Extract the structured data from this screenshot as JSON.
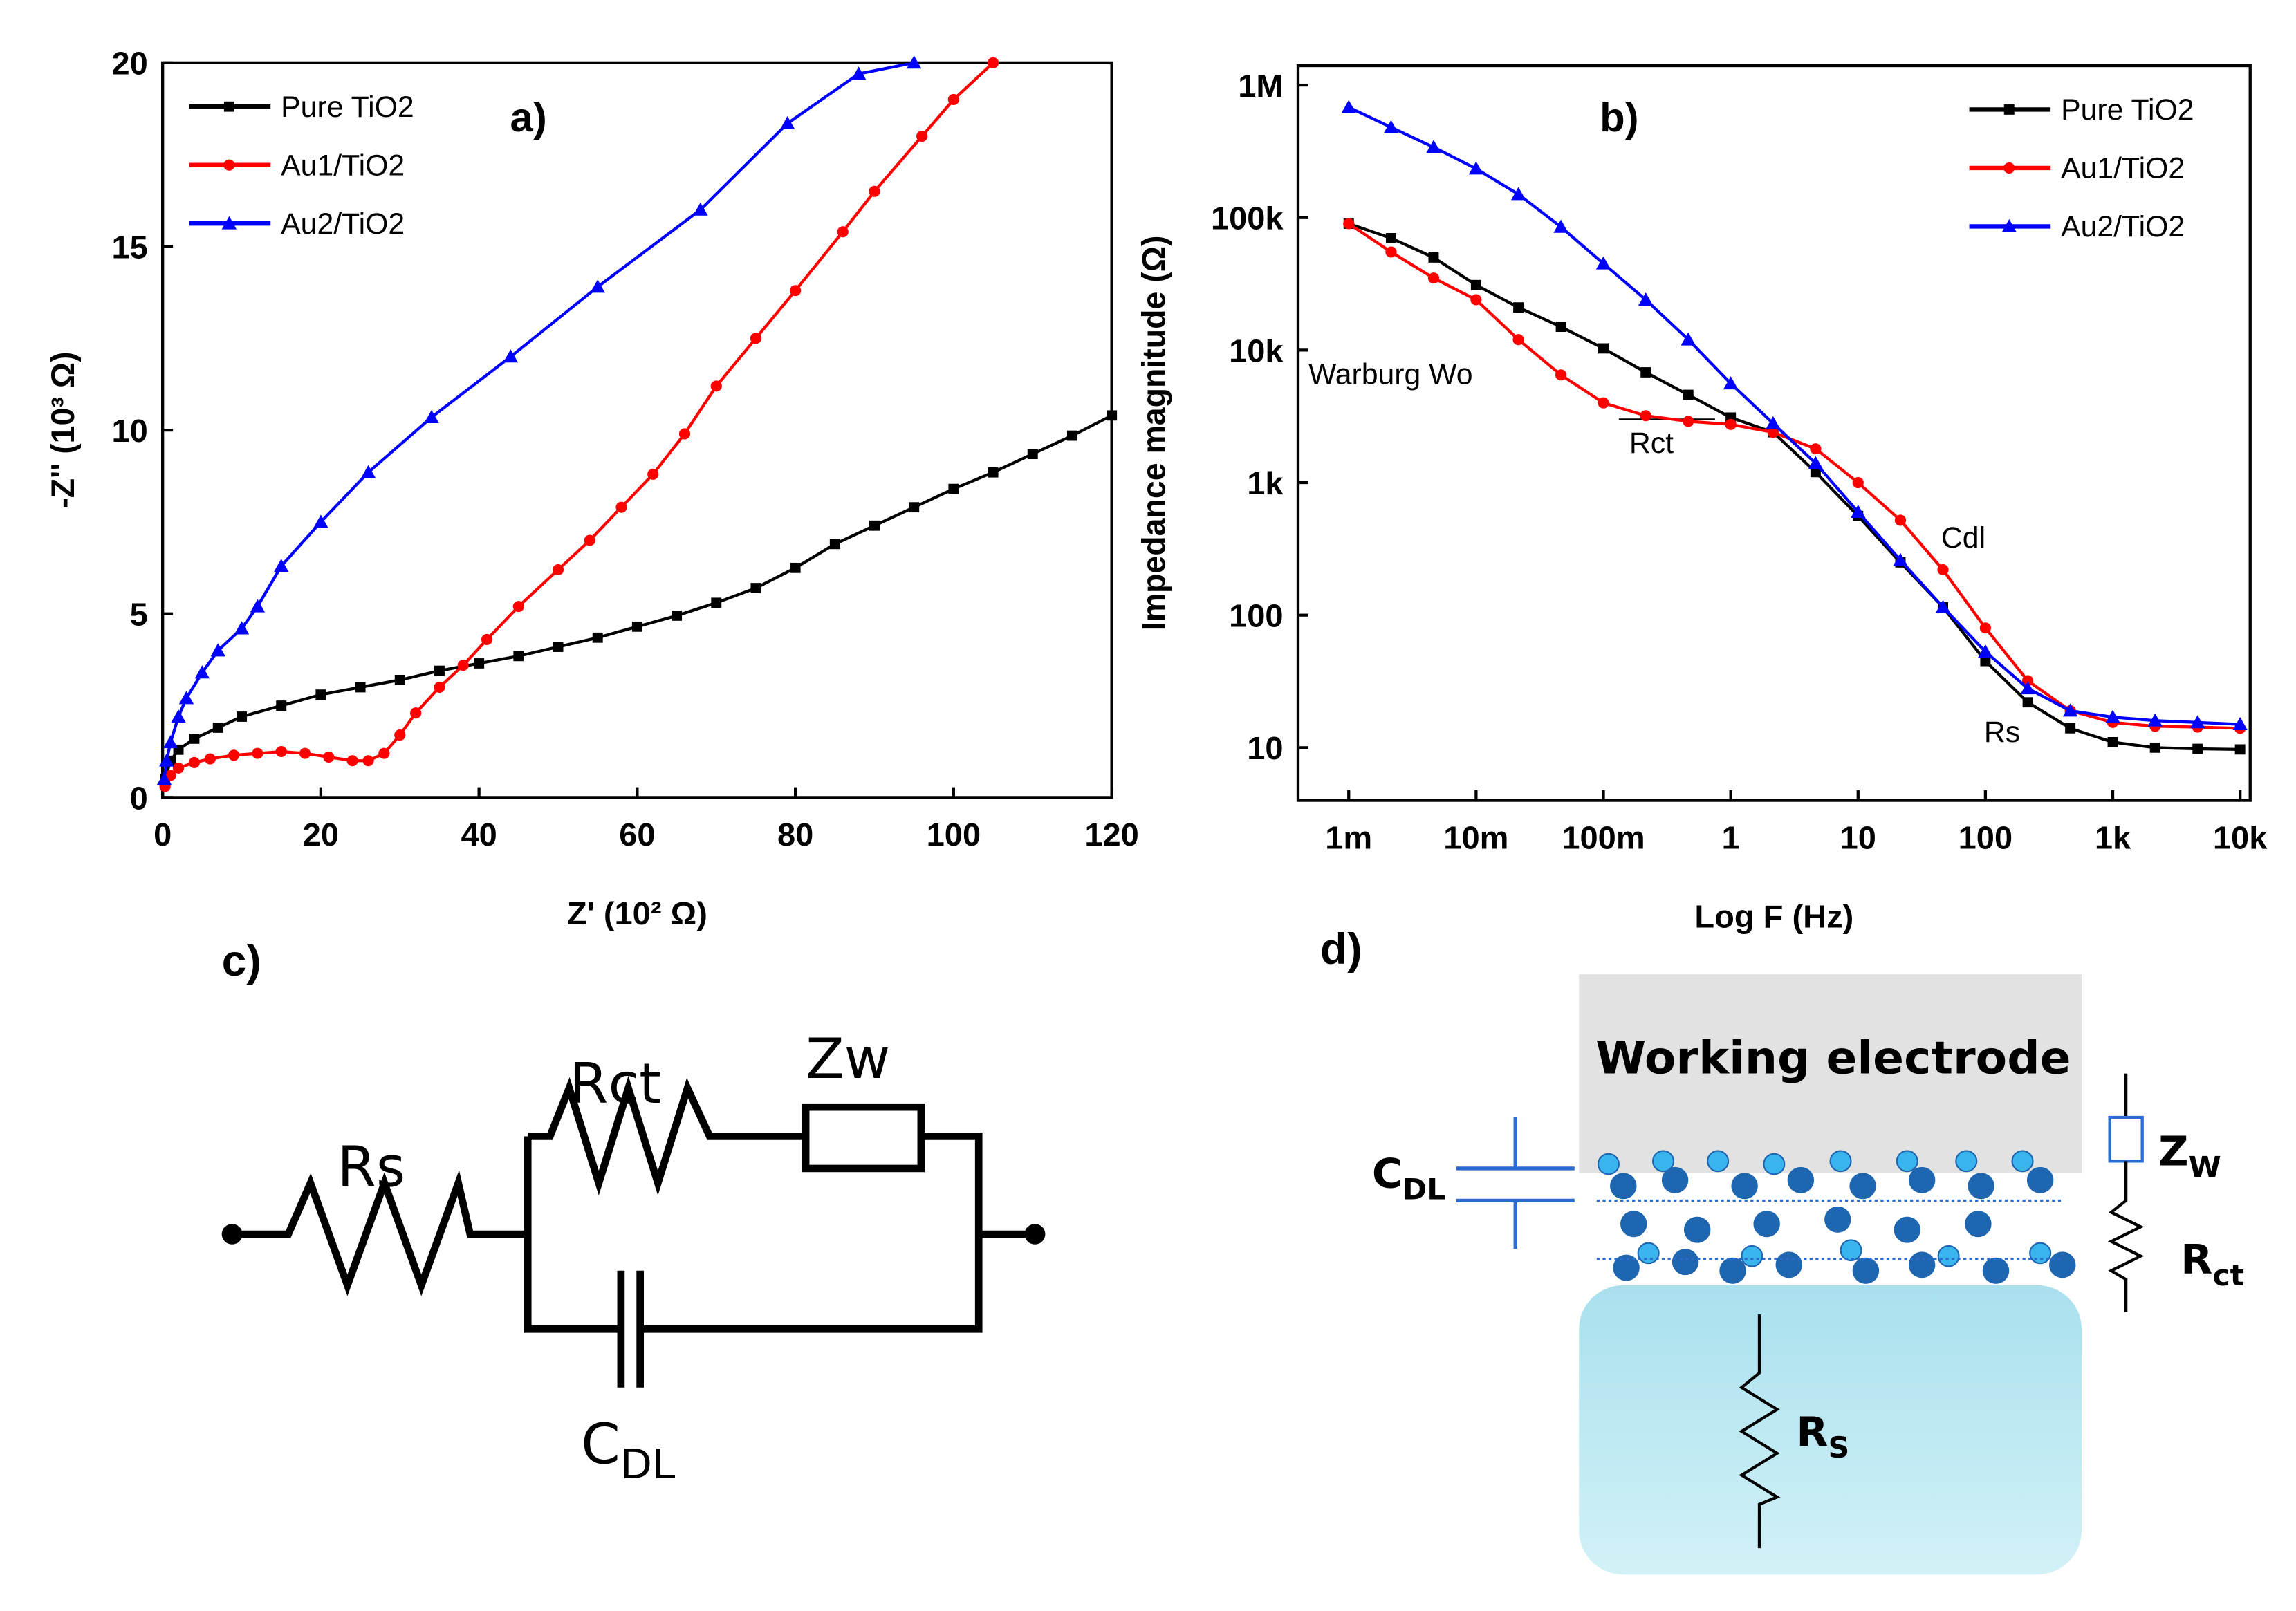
{
  "chart_data": [
    {
      "type": "line",
      "panel": "a)",
      "xlabel": "Z' (10² Ω)",
      "ylabel": "-Z'' (10³ Ω)",
      "xlim": [
        0,
        120
      ],
      "ylim": [
        0,
        20
      ],
      "xticks": [
        0,
        20,
        40,
        60,
        80,
        100,
        120
      ],
      "yticks": [
        0,
        5,
        10,
        15,
        20
      ],
      "legend": "upper left",
      "series": [
        {
          "name": "Pure TiO2",
          "color": "#000000",
          "marker": "square",
          "x": [
            0.3,
            1,
            2,
            4,
            7,
            10,
            15,
            20,
            25,
            30,
            35,
            40,
            45,
            50,
            55,
            60,
            65,
            70,
            75,
            80,
            85,
            90,
            95,
            100,
            105,
            110,
            115,
            120
          ],
          "values": [
            0.5,
            1,
            1.3,
            1.6,
            1.9,
            2.2,
            2.5,
            2.8,
            3.0,
            3.2,
            3.45,
            3.65,
            3.85,
            4.1,
            4.35,
            4.65,
            4.95,
            5.3,
            5.7,
            6.25,
            6.9,
            7.4,
            7.9,
            8.4,
            8.85,
            9.35,
            9.85,
            10.4
          ]
        },
        {
          "name": "Au1/TiO2",
          "color": "#ff0000",
          "marker": "circle",
          "x": [
            0.3,
            1,
            2,
            4,
            6,
            9,
            12,
            15,
            18,
            21,
            24,
            26,
            28,
            30,
            32,
            35,
            38,
            41,
            45,
            50,
            54,
            58,
            62,
            66,
            70,
            75,
            80,
            86,
            90,
            96,
            100,
            105
          ],
          "values": [
            0.3,
            0.6,
            0.8,
            0.95,
            1.05,
            1.15,
            1.2,
            1.25,
            1.2,
            1.1,
            1.0,
            1.0,
            1.2,
            1.7,
            2.3,
            3.0,
            3.6,
            4.3,
            5.2,
            6.2,
            7.0,
            7.9,
            8.8,
            9.9,
            11.2,
            12.5,
            13.8,
            15.4,
            16.5,
            18.0,
            19.0,
            20.0
          ]
        },
        {
          "name": "Au2/TiO2",
          "color": "#0000ff",
          "marker": "triangle",
          "x": [
            0.2,
            0.5,
            1,
            2,
            3,
            5,
            7,
            10,
            12,
            15,
            20,
            26,
            34,
            44,
            55,
            68,
            79,
            88,
            95
          ],
          "values": [
            0.5,
            1,
            1.5,
            2.2,
            2.7,
            3.4,
            4,
            4.6,
            5.2,
            6.3,
            7.5,
            8.85,
            10.35,
            12.0,
            13.9,
            16.0,
            18.35,
            19.7,
            20
          ]
        }
      ]
    },
    {
      "type": "line",
      "panel": "b)",
      "xlabel": "Log F (Hz)",
      "ylabel": "Impedance magnitude (Ω)",
      "xscale": "log",
      "yscale": "log",
      "xlim": [
        0.0004,
        12000
      ],
      "ylim": [
        4,
        1400000
      ],
      "xticks": [
        {
          "value": 0.001,
          "label": "1m"
        },
        {
          "value": 0.01,
          "label": "10m"
        },
        {
          "value": 0.1,
          "label": "100m"
        },
        1,
        10,
        100,
        {
          "value": 1000,
          "label": "1k"
        },
        {
          "value": 10000,
          "label": "10k"
        }
      ],
      "yticks": [
        10,
        100,
        {
          "value": 1000,
          "label": "1k"
        },
        {
          "value": 10000,
          "label": "10k"
        },
        {
          "value": 100000,
          "label": "100k"
        },
        {
          "value": 1000000,
          "label": "1M"
        }
      ],
      "legend": "upper right",
      "annotations": [
        "Warburg Wo",
        "Rct",
        "Cdl",
        "Rs"
      ],
      "x": [
        0.001,
        0.00215,
        0.00464,
        0.01,
        0.0215,
        0.0464,
        0.1,
        0.215,
        0.464,
        1,
        2.15,
        4.64,
        10,
        21.5,
        46.4,
        100,
        215,
        464,
        1000,
        2150,
        4640,
        10000
      ],
      "series": [
        {
          "name": "Pure TiO2",
          "color": "#000000",
          "marker": "square",
          "values": [
            90000,
            70000,
            50000,
            31000,
            21000,
            15000,
            10300,
            6800,
            4600,
            3100,
            2400,
            1200,
            560,
            250,
            115,
            45,
            22,
            14,
            11,
            10,
            9.8,
            9.7
          ]
        },
        {
          "name": "Au1/TiO2",
          "color": "#ff0000",
          "marker": "circle",
          "values": [
            90000,
            55000,
            35000,
            24000,
            12000,
            6500,
            4000,
            3200,
            2900,
            2750,
            2400,
            1800,
            1000,
            520,
            220,
            80,
            32,
            19,
            15.5,
            14.5,
            14.3,
            14
          ]
        },
        {
          "name": "Au2/TiO2",
          "color": "#0000ff",
          "marker": "triangle",
          "values": [
            680000,
            480000,
            340000,
            234000,
            150000,
            85000,
            45000,
            24000,
            12000,
            5600,
            2800,
            1400,
            600,
            260,
            115,
            53,
            28,
            19,
            17,
            16,
            15.5,
            15
          ]
        }
      ]
    }
  ],
  "circuit": {
    "panel": "c)",
    "rs": "Rs",
    "rct": "Rct",
    "zw": "Zw",
    "cdl": "C",
    "cdl_sub": "DL"
  },
  "electrode": {
    "panel": "d)",
    "title": "Working electrode",
    "cdl": "C",
    "cdl_sub": "DL",
    "zw": "Z",
    "zw_sub": "W",
    "rct": "R",
    "rct_sub": "ct",
    "rs": "R",
    "rs_sub": "S"
  }
}
